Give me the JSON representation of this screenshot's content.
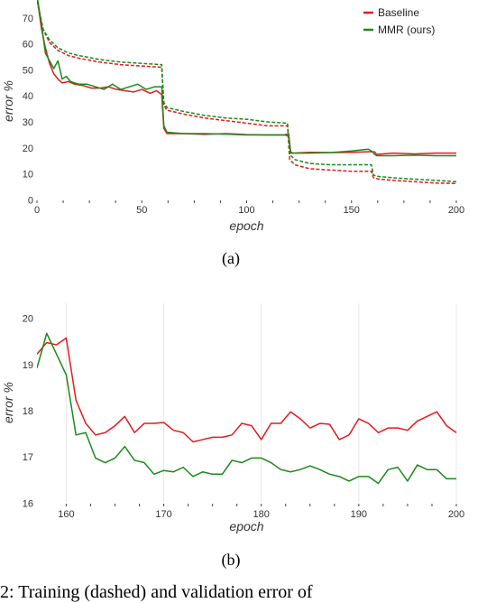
{
  "legend": {
    "baseline": "Baseline",
    "mmr": "MMR (ours)"
  },
  "colors": {
    "baseline": "#e31a1c",
    "mmr": "#1a8a1a"
  },
  "captions": {
    "a": "(a)",
    "b": "(b)"
  },
  "cutoff_text": "2: Training (dashed) and validation error of",
  "chart_data": [
    {
      "type": "line",
      "xlabel": "epoch",
      "ylabel": "error %",
      "xlim": [
        0,
        200
      ],
      "ylim": [
        0,
        75
      ],
      "xticks": [
        0,
        50,
        100,
        150,
        200
      ],
      "yticks": [
        0,
        10,
        20,
        30,
        40,
        50,
        60,
        70
      ],
      "grid": false,
      "legend_position": "top-right",
      "series": [
        {
          "name": "Baseline",
          "style": "solid",
          "color": "#e31a1c",
          "points": [
            [
              0,
              78
            ],
            [
              2,
              66
            ],
            [
              4,
              58
            ],
            [
              6,
              52
            ],
            [
              8,
              48
            ],
            [
              10,
              46
            ],
            [
              12,
              44.5
            ],
            [
              15,
              45
            ],
            [
              18,
              44
            ],
            [
              22,
              43.5
            ],
            [
              26,
              42.5
            ],
            [
              30,
              42.5
            ],
            [
              34,
              43
            ],
            [
              38,
              42
            ],
            [
              42,
              41.5
            ],
            [
              46,
              41
            ],
            [
              50,
              42
            ],
            [
              54,
              40.5
            ],
            [
              57,
              41.5
            ],
            [
              59.5,
              40
            ],
            [
              60.5,
              27
            ],
            [
              62,
              25
            ],
            [
              70,
              25
            ],
            [
              80,
              24.7
            ],
            [
              90,
              25
            ],
            [
              100,
              24.6
            ],
            [
              110,
              24.5
            ],
            [
              118,
              24.5
            ],
            [
              120,
              25
            ],
            [
              121,
              18
            ],
            [
              122,
              17.5
            ],
            [
              130,
              17.8
            ],
            [
              140,
              17.7
            ],
            [
              150,
              17.8
            ],
            [
              158,
              18
            ],
            [
              160,
              18
            ],
            [
              161,
              18
            ],
            [
              162,
              17
            ],
            [
              170,
              17.5
            ],
            [
              180,
              17.2
            ],
            [
              190,
              17.5
            ],
            [
              200,
              17.5
            ]
          ]
        },
        {
          "name": "MMR (ours)",
          "style": "solid",
          "color": "#1a8a1a",
          "points": [
            [
              0,
              78
            ],
            [
              2,
              68
            ],
            [
              4,
              56
            ],
            [
              6,
              53
            ],
            [
              8,
              50
            ],
            [
              10,
              53
            ],
            [
              12,
              46
            ],
            [
              14,
              47
            ],
            [
              16,
              45
            ],
            [
              20,
              44
            ],
            [
              24,
              44
            ],
            [
              28,
              43
            ],
            [
              32,
              42
            ],
            [
              36,
              44
            ],
            [
              40,
              42
            ],
            [
              44,
              43
            ],
            [
              48,
              44
            ],
            [
              52,
              42
            ],
            [
              56,
              43
            ],
            [
              59.5,
              43
            ],
            [
              60.5,
              28
            ],
            [
              62,
              25.5
            ],
            [
              70,
              25
            ],
            [
              80,
              25
            ],
            [
              90,
              24.8
            ],
            [
              100,
              24.5
            ],
            [
              110,
              24.5
            ],
            [
              118,
              24.5
            ],
            [
              120,
              24
            ],
            [
              121,
              17.5
            ],
            [
              122,
              17.5
            ],
            [
              130,
              17.5
            ],
            [
              140,
              17.7
            ],
            [
              150,
              18.3
            ],
            [
              158,
              19
            ],
            [
              160,
              18
            ],
            [
              161,
              17
            ],
            [
              162,
              16.5
            ],
            [
              170,
              16.5
            ],
            [
              180,
              16.7
            ],
            [
              190,
              16.5
            ],
            [
              200,
              16.5
            ]
          ]
        },
        {
          "name": "",
          "style": "dashed",
          "color": "#e31a1c",
          "points": [
            [
              0,
              76
            ],
            [
              3,
              65
            ],
            [
              6,
              60
            ],
            [
              10,
              57
            ],
            [
              15,
              55
            ],
            [
              20,
              54
            ],
            [
              30,
              52.5
            ],
            [
              40,
              51.5
            ],
            [
              50,
              51
            ],
            [
              59.5,
              50.5
            ],
            [
              60.5,
              36
            ],
            [
              62,
              34
            ],
            [
              70,
              32.5
            ],
            [
              80,
              31
            ],
            [
              90,
              30
            ],
            [
              100,
              29
            ],
            [
              110,
              28
            ],
            [
              119.5,
              28
            ],
            [
              120.5,
              15
            ],
            [
              123,
              13
            ],
            [
              130,
              11.5
            ],
            [
              140,
              11
            ],
            [
              150,
              10.5
            ],
            [
              159.5,
              10.5
            ],
            [
              160.5,
              8
            ],
            [
              163,
              7.5
            ],
            [
              170,
              7
            ],
            [
              180,
              6.5
            ],
            [
              190,
              6
            ],
            [
              200,
              5.8
            ]
          ]
        },
        {
          "name": "",
          "style": "dashed",
          "color": "#1a8a1a",
          "points": [
            [
              0,
              76
            ],
            [
              3,
              65
            ],
            [
              6,
              61
            ],
            [
              10,
              58
            ],
            [
              15,
              56
            ],
            [
              20,
              55
            ],
            [
              30,
              53.5
            ],
            [
              40,
              52.5
            ],
            [
              50,
              52
            ],
            [
              59.5,
              51.5
            ],
            [
              60.5,
              37
            ],
            [
              62,
              35
            ],
            [
              70,
              33.5
            ],
            [
              80,
              32
            ],
            [
              90,
              31
            ],
            [
              100,
              30.5
            ],
            [
              110,
              29.5
            ],
            [
              119.5,
              29
            ],
            [
              120.5,
              17
            ],
            [
              123,
              15
            ],
            [
              130,
              13.5
            ],
            [
              140,
              13
            ],
            [
              150,
              13
            ],
            [
              159.5,
              13
            ],
            [
              160.5,
              9
            ],
            [
              163,
              8.5
            ],
            [
              170,
              8
            ],
            [
              180,
              7.5
            ],
            [
              190,
              7
            ],
            [
              200,
              6.5
            ]
          ]
        }
      ]
    },
    {
      "type": "line",
      "xlabel": "epoch",
      "ylabel": "error %",
      "xlim": [
        157,
        200
      ],
      "ylim": [
        16,
        20.3
      ],
      "xticks": [
        160,
        170,
        180,
        190,
        200
      ],
      "yticks": [
        16,
        17,
        18,
        19,
        20
      ],
      "grid": true,
      "series": [
        {
          "name": "Baseline",
          "color": "#e31a1c",
          "points": [
            [
              157,
              19.2
            ],
            [
              158,
              19.45
            ],
            [
              159,
              19.4
            ],
            [
              160,
              19.55
            ],
            [
              161,
              18.2
            ],
            [
              162,
              17.7
            ],
            [
              163,
              17.45
            ],
            [
              164,
              17.5
            ],
            [
              165,
              17.65
            ],
            [
              166,
              17.85
            ],
            [
              167,
              17.5
            ],
            [
              168,
              17.7
            ],
            [
              169,
              17.7
            ],
            [
              170,
              17.72
            ],
            [
              171,
              17.55
            ],
            [
              172,
              17.5
            ],
            [
              173,
              17.3
            ],
            [
              174,
              17.35
            ],
            [
              175,
              17.4
            ],
            [
              176,
              17.4
            ],
            [
              177,
              17.45
            ],
            [
              178,
              17.7
            ],
            [
              179,
              17.65
            ],
            [
              180,
              17.35
            ],
            [
              181,
              17.7
            ],
            [
              182,
              17.7
            ],
            [
              183,
              17.95
            ],
            [
              184,
              17.8
            ],
            [
              185,
              17.6
            ],
            [
              186,
              17.7
            ],
            [
              187,
              17.68
            ],
            [
              188,
              17.35
            ],
            [
              189,
              17.45
            ],
            [
              190,
              17.8
            ],
            [
              191,
              17.7
            ],
            [
              192,
              17.5
            ],
            [
              193,
              17.6
            ],
            [
              194,
              17.6
            ],
            [
              195,
              17.55
            ],
            [
              196,
              17.75
            ],
            [
              197,
              17.85
            ],
            [
              198,
              17.95
            ],
            [
              199,
              17.65
            ],
            [
              200,
              17.5
            ]
          ]
        },
        {
          "name": "MMR (ours)",
          "color": "#1a8a1a",
          "points": [
            [
              157,
              18.9
            ],
            [
              158,
              19.65
            ],
            [
              159,
              19.2
            ],
            [
              160,
              18.75
            ],
            [
              161,
              17.45
            ],
            [
              162,
              17.5
            ],
            [
              163,
              16.95
            ],
            [
              164,
              16.85
            ],
            [
              165,
              16.95
            ],
            [
              166,
              17.2
            ],
            [
              167,
              16.9
            ],
            [
              168,
              16.85
            ],
            [
              169,
              16.6
            ],
            [
              170,
              16.68
            ],
            [
              171,
              16.65
            ],
            [
              172,
              16.75
            ],
            [
              173,
              16.55
            ],
            [
              174,
              16.65
            ],
            [
              175,
              16.6
            ],
            [
              176,
              16.6
            ],
            [
              177,
              16.9
            ],
            [
              178,
              16.85
            ],
            [
              179,
              16.95
            ],
            [
              180,
              16.95
            ],
            [
              181,
              16.85
            ],
            [
              182,
              16.7
            ],
            [
              183,
              16.65
            ],
            [
              184,
              16.7
            ],
            [
              185,
              16.78
            ],
            [
              186,
              16.7
            ],
            [
              187,
              16.6
            ],
            [
              188,
              16.55
            ],
            [
              189,
              16.45
            ],
            [
              190,
              16.55
            ],
            [
              191,
              16.55
            ],
            [
              192,
              16.4
            ],
            [
              193,
              16.7
            ],
            [
              194,
              16.75
            ],
            [
              195,
              16.45
            ],
            [
              196,
              16.8
            ],
            [
              197,
              16.7
            ],
            [
              198,
              16.7
            ],
            [
              199,
              16.5
            ],
            [
              200,
              16.5
            ]
          ]
        }
      ]
    }
  ]
}
